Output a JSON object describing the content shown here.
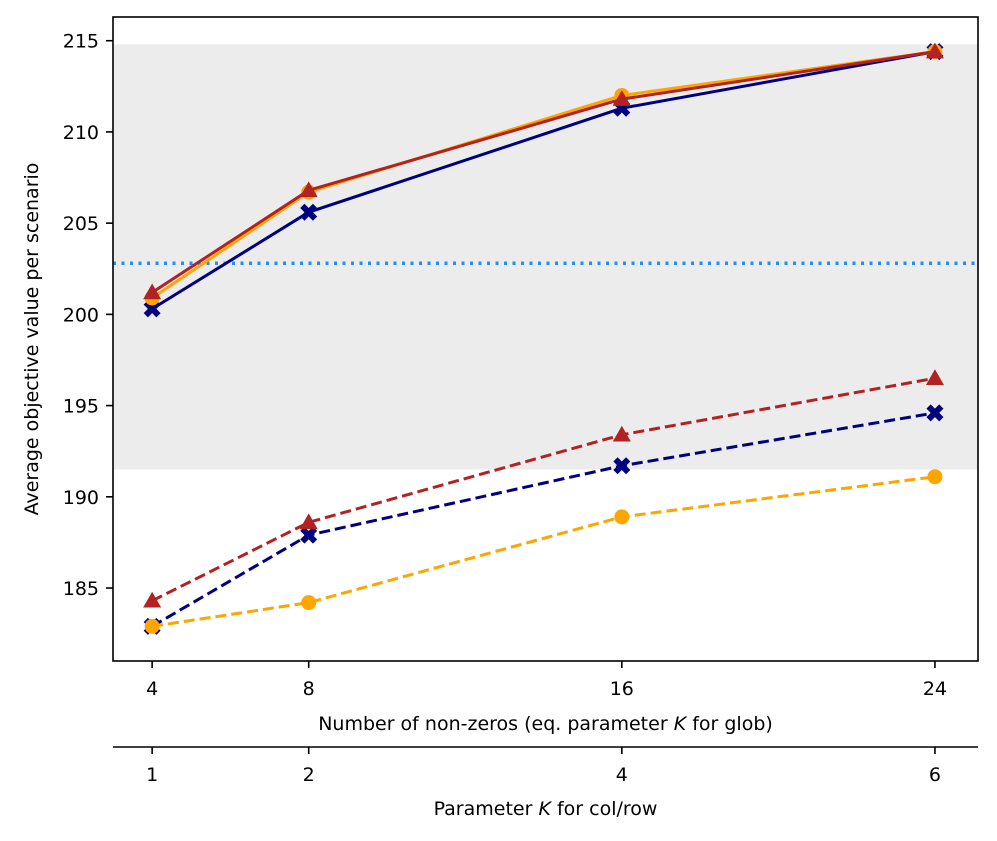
{
  "chart_data": {
    "type": "line",
    "ylabel": "Average objective value per scenario",
    "xlabel_parts": [
      "Number of non-zeros (eq. parameter ",
      "K",
      " for glob)"
    ],
    "x2label_parts": [
      "Parameter ",
      "K",
      " for col/row"
    ],
    "x": [
      4,
      8,
      16,
      24
    ],
    "x_ticks": [
      "4",
      "8",
      "16",
      "24"
    ],
    "x2_ticks": [
      "1",
      "2",
      "4",
      "6"
    ],
    "ylim": [
      181,
      216.3
    ],
    "xlim": [
      3,
      25.1
    ],
    "y_ticks": [
      185,
      190,
      195,
      200,
      205,
      210,
      215
    ],
    "y_tick_labels": [
      "185",
      "190",
      "195",
      "200",
      "205",
      "210",
      "215"
    ],
    "shaded_band": {
      "y_from": 191.5,
      "y_to": 214.8,
      "color": "#ececec"
    },
    "reference_line": {
      "y": 202.8,
      "color": "#1e90ff",
      "style": "dotted"
    },
    "series": [
      {
        "values": [
          200.3,
          205.6,
          211.3,
          214.4
        ],
        "color": "#000080",
        "marker": "x",
        "line": "solid"
      },
      {
        "values": [
          200.9,
          206.7,
          212.0,
          214.4
        ],
        "color": "#ffa500",
        "marker": "circle",
        "line": "solid"
      },
      {
        "values": [
          201.2,
          206.8,
          211.8,
          214.4
        ],
        "color": "#b22222",
        "marker": "triangle",
        "line": "solid"
      },
      {
        "values": [
          182.9,
          187.9,
          191.7,
          194.6
        ],
        "color": "#000080",
        "marker": "x",
        "line": "dashed"
      },
      {
        "values": [
          182.9,
          184.2,
          188.9,
          191.1
        ],
        "color": "#ffa500",
        "marker": "circle",
        "line": "dashed"
      },
      {
        "values": [
          184.3,
          188.6,
          193.4,
          196.5
        ],
        "color": "#b22222",
        "marker": "triangle",
        "line": "dashed"
      }
    ],
    "grid": false,
    "legend": "none"
  }
}
